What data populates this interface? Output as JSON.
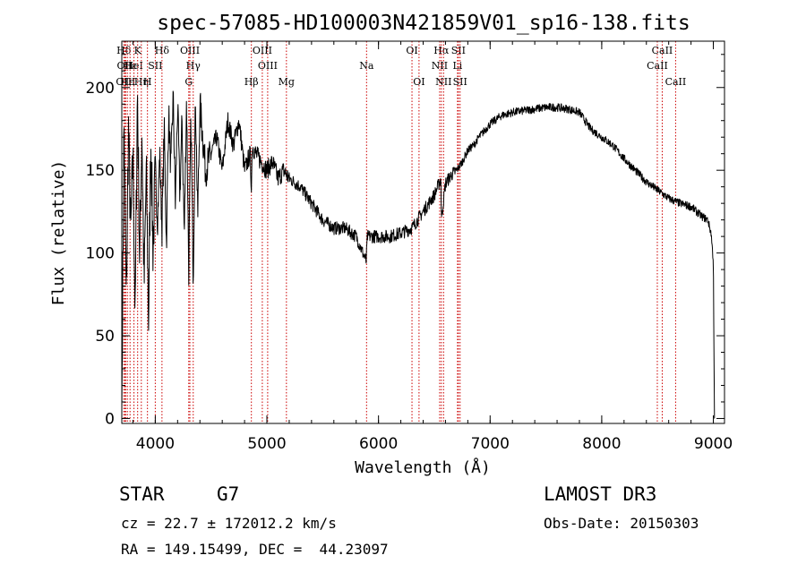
{
  "chart_data": {
    "type": "line",
    "title": "spec-57085-HD100003N421859V01_sp16-138.fits",
    "xlabel": "Wavelength (Å)",
    "ylabel": "Flux (relative)",
    "xlim": [
      3700,
      9100
    ],
    "ylim": [
      -3,
      228
    ],
    "xticks": [
      4000,
      5000,
      6000,
      7000,
      8000,
      9000
    ],
    "yticks": [
      0,
      50,
      100,
      150,
      200
    ],
    "series": [
      {
        "name": "flux",
        "x": [
          3700,
          3720,
          3740,
          3760,
          3780,
          3800,
          3820,
          3840,
          3860,
          3880,
          3900,
          3920,
          3940,
          3960,
          3980,
          4000,
          4020,
          4040,
          4060,
          4080,
          4100,
          4120,
          4140,
          4160,
          4180,
          4200,
          4220,
          4240,
          4260,
          4280,
          4300,
          4320,
          4340,
          4360,
          4380,
          4400,
          4450,
          4500,
          4550,
          4600,
          4650,
          4700,
          4750,
          4800,
          4850,
          4860,
          4870,
          4900,
          4950,
          5000,
          5050,
          5100,
          5150,
          5200,
          5300,
          5400,
          5500,
          5600,
          5700,
          5800,
          5890,
          5900,
          6000,
          6100,
          6200,
          6300,
          6400,
          6500,
          6560,
          6563,
          6600,
          6650,
          6700,
          6750,
          6800,
          6850,
          6900,
          7000,
          7100,
          7200,
          7300,
          7400,
          7500,
          7600,
          7700,
          7800,
          7900,
          8000,
          8100,
          8200,
          8300,
          8400,
          8500,
          8600,
          8700,
          8800,
          8850,
          8900,
          8950,
          8980,
          9000,
          9010
        ],
        "y": [
          5,
          180,
          70,
          175,
          110,
          160,
          60,
          200,
          95,
          175,
          80,
          150,
          60,
          170,
          100,
          150,
          120,
          160,
          115,
          175,
          105,
          185,
          150,
          195,
          130,
          190,
          135,
          180,
          110,
          195,
          90,
          180,
          85,
          195,
          120,
          190,
          150,
          160,
          170,
          150,
          180,
          165,
          180,
          150,
          160,
          140,
          165,
          160,
          155,
          150,
          155,
          145,
          150,
          145,
          140,
          130,
          120,
          115,
          115,
          110,
          95,
          110,
          110,
          110,
          112,
          115,
          125,
          135,
          145,
          120,
          142,
          147,
          150,
          155,
          162,
          165,
          170,
          178,
          183,
          185,
          186,
          187,
          188,
          188,
          187,
          185,
          175,
          170,
          165,
          157,
          150,
          143,
          138,
          133,
          130,
          128,
          125,
          122,
          120,
          112,
          95,
          0
        ]
      }
    ],
    "lines": [
      {
        "label": "Hδ",
        "x": 3718,
        "row": 0
      },
      {
        "label": "OII",
        "x": 3727,
        "row": 1
      },
      {
        "label": "OIII",
        "x": 3735,
        "row": 2
      },
      {
        "label": "Hε",
        "x": 3750,
        "row": 2
      },
      {
        "label": "Hε",
        "x": 3774,
        "row": 1
      },
      {
        "label": "HeI",
        "x": 3809,
        "row": 1
      },
      {
        "label": "K",
        "x": 3842,
        "row": 0
      },
      {
        "label": "Hη",
        "x": 3875,
        "row": 2
      },
      {
        "label": "H",
        "x": 3930,
        "row": 2
      },
      {
        "label": "SII",
        "x": 4000,
        "row": 1
      },
      {
        "label": "Hδ",
        "x": 4060,
        "row": 0
      },
      {
        "label": "OIII",
        "x": 4310,
        "row": 0
      },
      {
        "label": "Hγ",
        "x": 4340,
        "row": 1
      },
      {
        "label": "G",
        "x": 4300,
        "row": 2
      },
      {
        "label": "Hβ",
        "x": 4861,
        "row": 2
      },
      {
        "label": "OIII",
        "x": 4959,
        "row": 0
      },
      {
        "label": "OIII",
        "x": 5007,
        "row": 1
      },
      {
        "label": "Mg",
        "x": 5175,
        "row": 2
      },
      {
        "label": "Na",
        "x": 5893,
        "row": 1
      },
      {
        "label": "OI",
        "x": 6300,
        "row": 0
      },
      {
        "label": "OI",
        "x": 6363,
        "row": 2
      },
      {
        "label": "Hα",
        "x": 6563,
        "row": 0
      },
      {
        "label": "NII",
        "x": 6548,
        "row": 1
      },
      {
        "label": "NII",
        "x": 6583,
        "row": 2
      },
      {
        "label": "SII",
        "x": 6716,
        "row": 0
      },
      {
        "label": "Li",
        "x": 6708,
        "row": 1
      },
      {
        "label": "SII",
        "x": 6731,
        "row": 2
      },
      {
        "label": "CaII",
        "x": 8542,
        "row": 0
      },
      {
        "label": "CaII",
        "x": 8498,
        "row": 1
      },
      {
        "label": "CaII",
        "x": 8662,
        "row": 2
      }
    ]
  },
  "info": {
    "object_type": "STAR",
    "subclass": "G7",
    "cz": "cz = 22.7 ± 172012.2 km/s",
    "coords": "RA = 149.15499, DEC =  44.23097",
    "survey": "LAMOST DR3",
    "obs_date": "Obs-Date: 20150303"
  }
}
